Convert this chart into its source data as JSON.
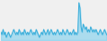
{
  "values": [
    3,
    2,
    4,
    2,
    3,
    1,
    2,
    3,
    2,
    1,
    2,
    3,
    4,
    3,
    2,
    3,
    2,
    4,
    3,
    2,
    3,
    2,
    4,
    3,
    2,
    3,
    2,
    3,
    4,
    3,
    2,
    3,
    2,
    4,
    3,
    2,
    1,
    2,
    3,
    2,
    4,
    3,
    2,
    3,
    4,
    2,
    3,
    4,
    3,
    2,
    3,
    2,
    3,
    4,
    3,
    2,
    3,
    2,
    4,
    3,
    2,
    3,
    4,
    3,
    2,
    3,
    2,
    3,
    4,
    2,
    3,
    2,
    3,
    14,
    12,
    5,
    3,
    6,
    5,
    4,
    5,
    3,
    4,
    3,
    5,
    4,
    3,
    4,
    3,
    4,
    3,
    2,
    3,
    4,
    3,
    2,
    3,
    4,
    3,
    2
  ],
  "line_color": "#3aadd9",
  "fill_color": "#7dcfee",
  "fill_alpha": 0.6,
  "background_color": "#f0f0f0",
  "linewidth": 0.7,
  "baseline": 0
}
